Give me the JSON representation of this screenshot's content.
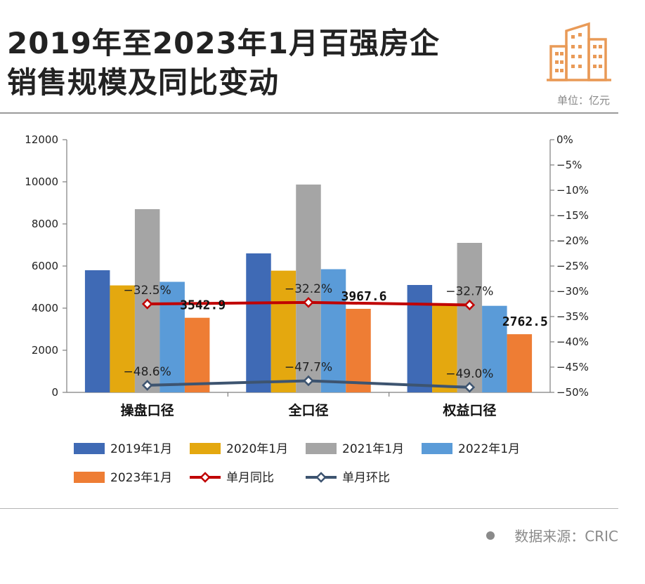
{
  "header": {
    "title_line1": "2019年至2023年1月百强房企",
    "title_line2": "销售规模及同比变动",
    "unit": "单位：亿元",
    "icon": "building-icon",
    "accent": "#E99A57"
  },
  "footer": {
    "source": "数据来源：CRIC"
  },
  "chart_data": {
    "type": "bar",
    "categories": [
      "操盘口径",
      "全口径",
      "权益口径"
    ],
    "ylim": [
      0,
      12000
    ],
    "y_ticks": [
      "0",
      "2000",
      "4000",
      "6000",
      "8000",
      "10000",
      "12000"
    ],
    "y2lim": [
      -50,
      0
    ],
    "y2_ticks": [
      "0%",
      "-5%",
      "-10%",
      "-15%",
      "-20%",
      "-25%",
      "-30%",
      "-35%",
      "-40%",
      "-45%",
      "-50%"
    ],
    "series": [
      {
        "name": "2019年1月",
        "type": "bar",
        "color": "#3F6AB5",
        "values": [
          5800,
          6600,
          5100
        ]
      },
      {
        "name": "2020年1月",
        "type": "bar",
        "color": "#E4A80F",
        "values": [
          5080,
          5780,
          4160
        ]
      },
      {
        "name": "2021年1月",
        "type": "bar",
        "color": "#A5A5A5",
        "values": [
          8700,
          9870,
          7100
        ]
      },
      {
        "name": "2022年1月",
        "type": "bar",
        "color": "#5A9BD8",
        "values": [
          5250,
          5850,
          4110
        ]
      },
      {
        "name": "2023年1月",
        "type": "bar",
        "color": "#EE7D34",
        "values": [
          3542.9,
          3967.6,
          2762.5
        ]
      },
      {
        "name": "单月同比",
        "type": "line",
        "axis": "right",
        "color": "#C00000",
        "values": [
          -32.5,
          -32.2,
          -32.7
        ]
      },
      {
        "name": "单月环比",
        "type": "line",
        "axis": "right",
        "color": "#3D5470",
        "values": [
          -48.6,
          -47.7,
          -49.0
        ]
      }
    ],
    "data_labels": {
      "bar_2023": [
        "3542.9",
        "3967.6",
        "2762.5"
      ],
      "yoy": [
        "-32.5%",
        "-32.2%",
        "-32.7%"
      ],
      "mom": [
        "-48.6%",
        "-47.7%",
        "-49.0%"
      ]
    },
    "legend": "bottom"
  }
}
